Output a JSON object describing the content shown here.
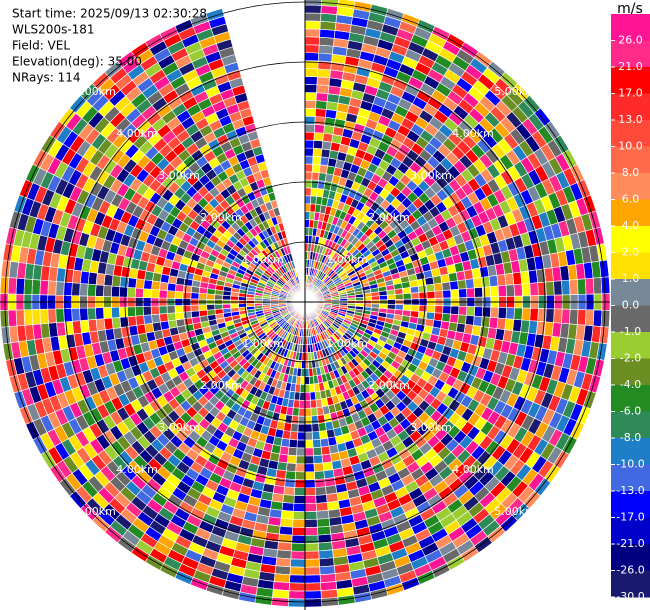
{
  "header": {
    "lines": [
      "Start time: 2025/09/13 02:30:28",
      "WLS200s-181",
      "Field: VEL",
      "Elevation(deg): 35.00",
      "NRays: 114"
    ]
  },
  "rings": [
    {
      "value": 1,
      "label": "1.00km"
    },
    {
      "value": 2,
      "label": "2.00km"
    },
    {
      "value": 3,
      "label": "3.00km"
    },
    {
      "value": 4,
      "label": "4.00km"
    },
    {
      "value": 5,
      "label": "5.00km"
    }
  ],
  "colorbar": {
    "unit": "m/s",
    "labels": [
      "26.0",
      "21.0",
      "17.0",
      "13.0",
      "10.0",
      "8.0",
      "6.0",
      "4.0",
      "2.0",
      "1.0",
      "0.0",
      "-1.0",
      "-2.0",
      "-4.0",
      "-6.0",
      "-8.0",
      "-10.0",
      "-13.0",
      "-17.0",
      "-21.0",
      "-26.0",
      "-30.0"
    ],
    "colors": [
      "#ff1493",
      "#ff2a8a",
      "#ff0000",
      "#ff2a2a",
      "#ff4a3a",
      "#ff6a4a",
      "#ff8c5a",
      "#ffa500",
      "#ffff00",
      "#ffe000",
      "#778899",
      "#696969",
      "#9acd32",
      "#6b8e23",
      "#228b22",
      "#2e8b57",
      "#1e7ec8",
      "#4169e1",
      "#0000ff",
      "#0000cd",
      "#000080",
      "#191970"
    ]
  }
}
